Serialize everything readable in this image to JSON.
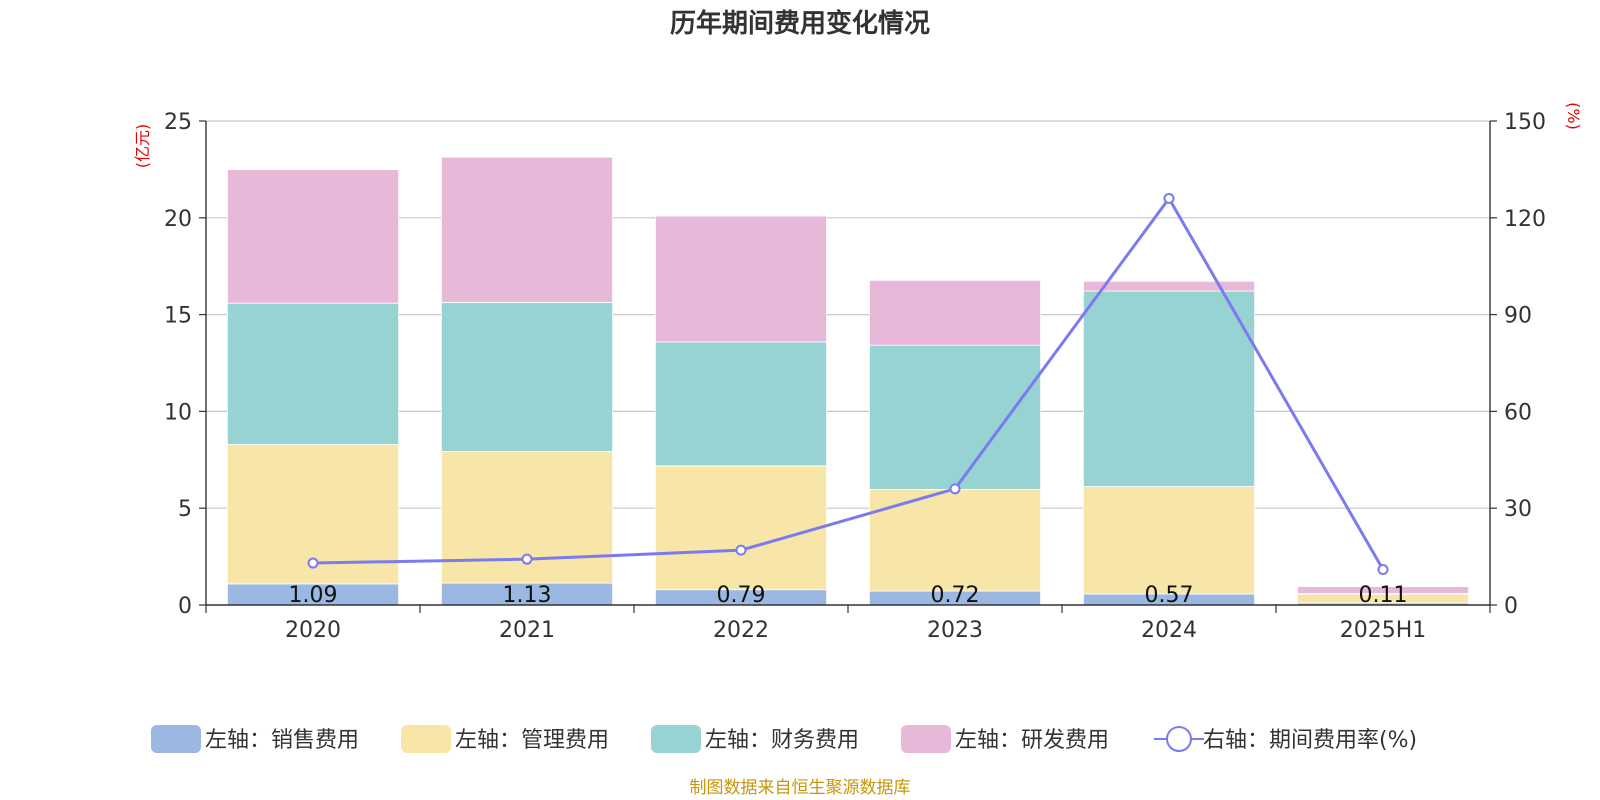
{
  "chart_data": {
    "type": "bar",
    "stacked": true,
    "title": "历年期间费用变化情况",
    "categories": [
      "2020",
      "2021",
      "2022",
      "2023",
      "2024",
      "2025H1"
    ],
    "series": [
      {
        "name": "左轴：销售费用",
        "axis": "left",
        "type": "bar",
        "color": "#9bb8e3",
        "values": [
          1.09,
          1.13,
          0.79,
          0.72,
          0.57,
          0.11
        ],
        "labels": [
          "1.09",
          "1.13",
          "0.79",
          "0.72",
          "0.57",
          "0.11"
        ]
      },
      {
        "name": "左轴：管理费用",
        "axis": "left",
        "type": "bar",
        "color": "#f8e6a8",
        "values": [
          7.2,
          6.8,
          6.4,
          5.25,
          5.55,
          0.45
        ]
      },
      {
        "name": "左轴：财务费用",
        "axis": "left",
        "type": "bar",
        "color": "#98d3d3",
        "values": [
          7.3,
          7.7,
          6.4,
          7.45,
          10.1,
          0.03
        ]
      },
      {
        "name": "左轴：研发费用",
        "axis": "left",
        "type": "bar",
        "color": "#e8b8d8",
        "values": [
          6.9,
          7.5,
          6.5,
          3.35,
          0.5,
          0.36
        ]
      },
      {
        "name": "右轴：期间费用率(%)",
        "axis": "right",
        "type": "line",
        "color": "#7b7bef",
        "values": [
          13,
          14.2,
          17,
          36,
          126,
          11
        ]
      }
    ],
    "y_left": {
      "unit": "(亿元)",
      "ylim": [
        0,
        25
      ],
      "ticks": [
        0,
        5,
        10,
        15,
        20,
        25
      ]
    },
    "y_right": {
      "unit": "(%)",
      "ylim": [
        0,
        150
      ],
      "ticks": [
        0,
        30,
        60,
        90,
        120,
        150
      ]
    },
    "grid": true,
    "legend_position": "bottom",
    "source": "制图数据来自恒生聚源数据库"
  }
}
